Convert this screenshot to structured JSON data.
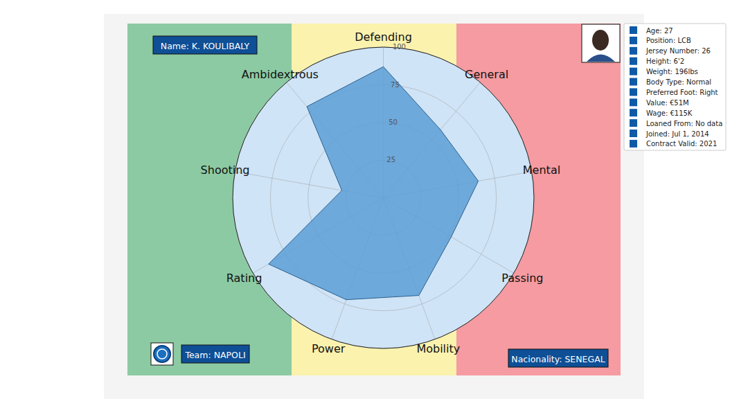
{
  "chart_data": {
    "type": "radar",
    "categories": [
      "Defending",
      "General",
      "Mental",
      "Passing",
      "Mobility",
      "Power",
      "Rating",
      "Shooting",
      "Ambidextrous"
    ],
    "values": [
      87,
      59,
      64,
      52,
      69,
      72,
      88,
      28,
      79
    ],
    "color": "#5c9fd6",
    "ylim": [
      0,
      100
    ],
    "yticks": [
      25,
      50,
      75,
      100
    ],
    "grid": true
  },
  "player": {
    "name": "Name: K. KOULIBALY",
    "team": "Team: NAPOLI",
    "nationality": "Nacionality: SENEGAL",
    "info": [
      "Age: 27",
      "Position: LCB",
      "Jersey Number: 26",
      "Height: 6'2",
      "Weight: 196lbs",
      "Body Type: Normal",
      "Preferred Foot: Right",
      "Value: €51M",
      "Wage: €115K",
      "Loaned From: No data",
      "Joined: Jul 1, 2014",
      "Contract Valid: 2021"
    ]
  }
}
